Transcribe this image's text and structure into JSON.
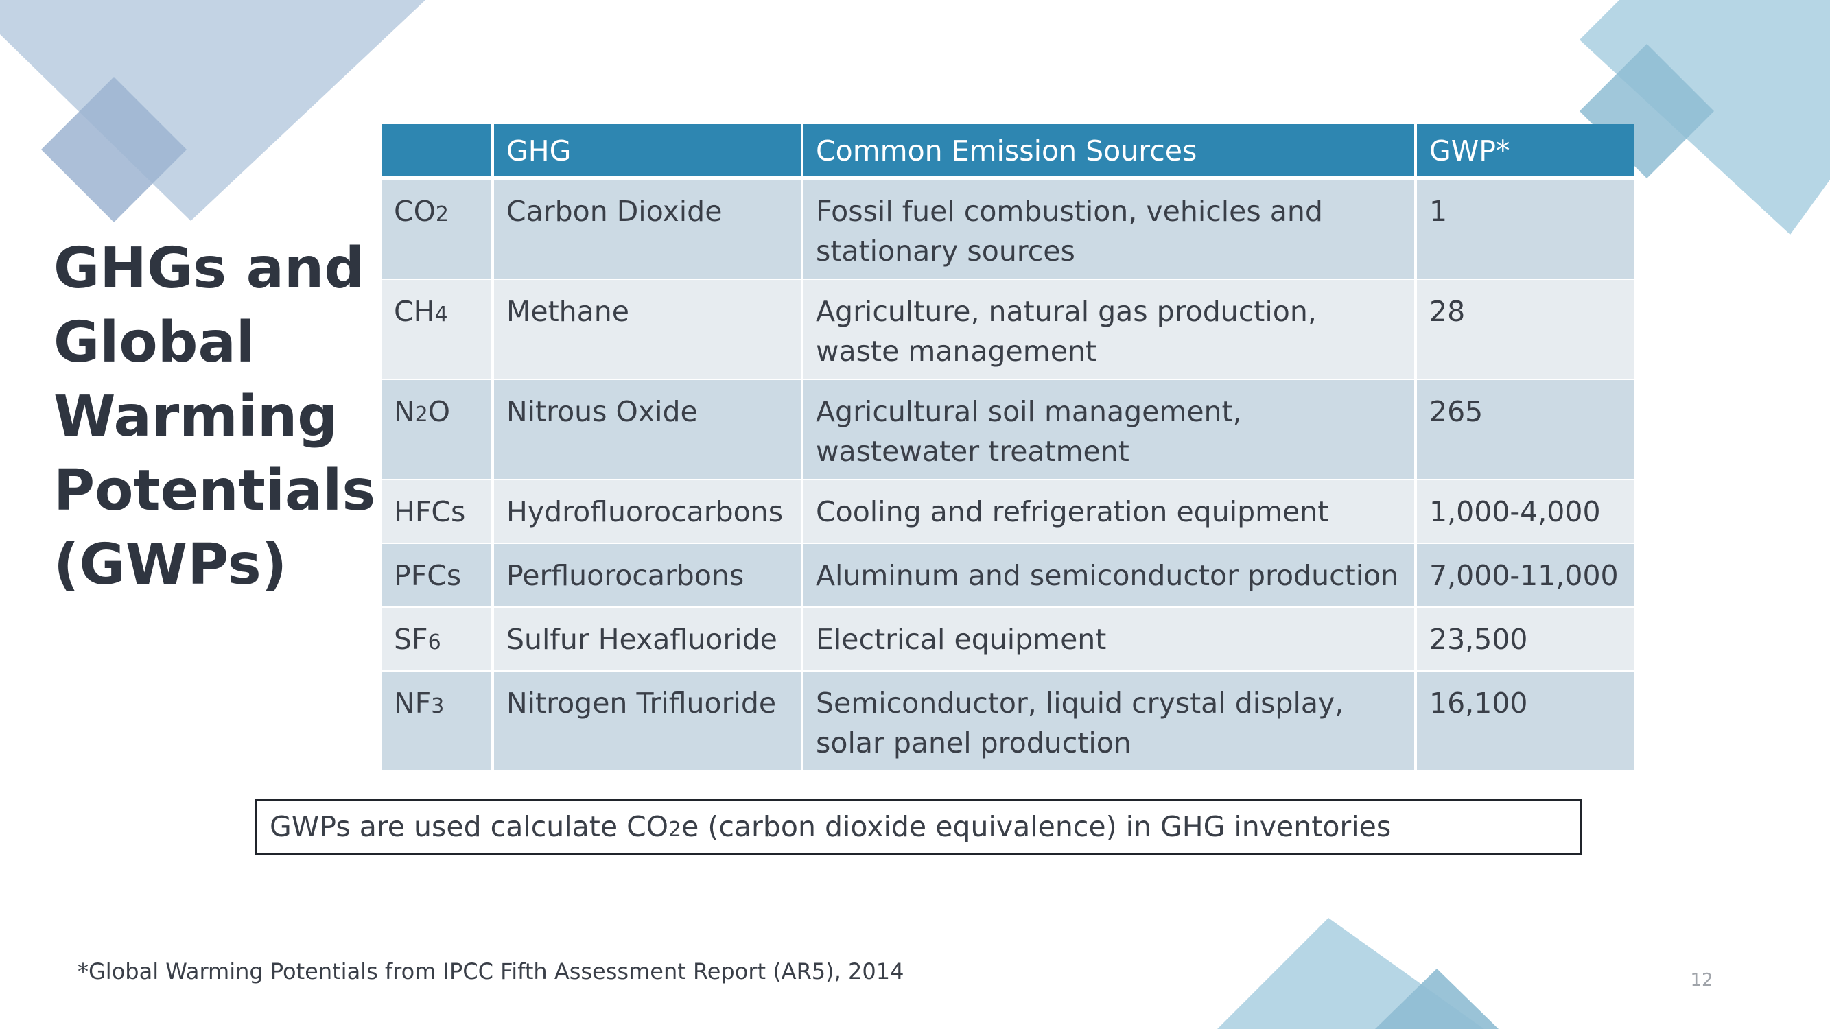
{
  "slide": {
    "title_lines": [
      "GHGs and",
      "Global",
      "Warming",
      "Potentials",
      "(GWPs)"
    ],
    "page_number": "12"
  },
  "table": {
    "headers": [
      "",
      "GHG",
      "Common Emission Sources",
      "GWP*"
    ],
    "rows": [
      {
        "formula_base": "CO",
        "formula_sub": "2",
        "formula_tail": "",
        "name": "Carbon Dioxide",
        "sources": "Fossil fuel combustion, vehicles and stationary sources",
        "gwp": "1"
      },
      {
        "formula_base": "CH",
        "formula_sub": "4",
        "formula_tail": "",
        "name": "Methane",
        "sources": "Agriculture, natural gas production, waste management",
        "gwp": "28"
      },
      {
        "formula_base": "N",
        "formula_sub": "2",
        "formula_tail": "O",
        "name": "Nitrous Oxide",
        "sources": "Agricultural soil management, wastewater treatment",
        "gwp": "265"
      },
      {
        "formula_base": "HFCs",
        "formula_sub": "",
        "formula_tail": "",
        "name": "Hydrofluorocarbons",
        "sources": "Cooling and refrigeration equipment",
        "gwp": "1,000-4,000"
      },
      {
        "formula_base": "PFCs",
        "formula_sub": "",
        "formula_tail": "",
        "name": "Perfluorocarbons",
        "sources": "Aluminum and semiconductor production",
        "gwp": "7,000-11,000"
      },
      {
        "formula_base": "SF",
        "formula_sub": "6",
        "formula_tail": "",
        "name": "Sulfur Hexafluoride",
        "sources": "Electrical equipment",
        "gwp": "23,500"
      },
      {
        "formula_base": "NF",
        "formula_sub": "3",
        "formula_tail": "",
        "name": "Nitrogen Trifluoride",
        "sources": "Semiconductor, liquid crystal display, solar panel production",
        "gwp": "16,100"
      }
    ]
  },
  "note": {
    "before": "GWPs are used calculate CO",
    "sub": "2",
    "after": "e (carbon dioxide equivalence) in GHG inventories"
  },
  "footnote": "*Global Warming Potentials from IPCC Fifth Assessment Report (AR5), 2014",
  "colors": {
    "header_bg": "#2e86b1",
    "row_dark": "#ccdae4",
    "row_light": "#e7ecf0",
    "title_text": "#2f3540",
    "decor_blue": "#8fbdd3",
    "decor_slate": "#9db4d1"
  }
}
